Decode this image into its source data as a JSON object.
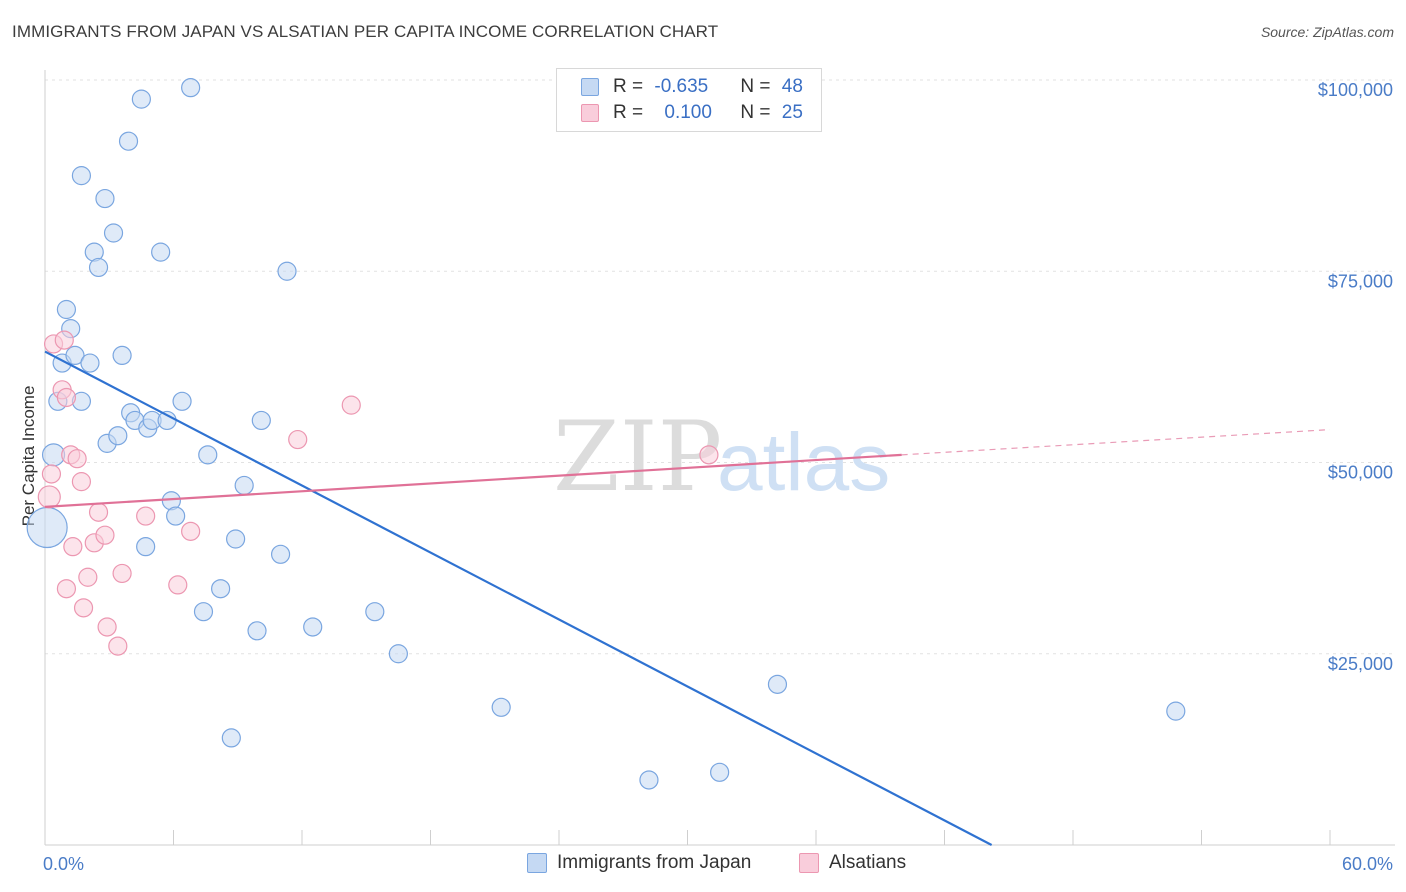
{
  "title": "IMMIGRANTS FROM JAPAN VS ALSATIAN PER CAPITA INCOME CORRELATION CHART",
  "source": "Source: ZipAtlas.com",
  "watermark": {
    "part1": "ZIP",
    "part2": "atlas"
  },
  "colors": {
    "japan_fill": "#c5d9f3",
    "japan_stroke": "#7aa6e0",
    "japan_line": "#2f72d1",
    "alsatian_fill": "#f9cddb",
    "alsatian_stroke": "#ec97b1",
    "alsatian_line": "#e07197",
    "tick": "#4a7cc7"
  },
  "legend": {
    "rows": [
      {
        "r_label": "R = ",
        "r_value": "-0.635",
        "n_label": "N = ",
        "n_value": "48"
      },
      {
        "r_label": "R = ",
        "r_value": "0.100",
        "n_label": "N = ",
        "n_value": "25"
      }
    ]
  },
  "bottom_legend": {
    "japan": "Immigrants from Japan",
    "alsatian": "Alsatians"
  },
  "chart_data": {
    "type": "scatter",
    "title": "IMMIGRANTS FROM JAPAN VS ALSATIAN PER CAPITA INCOME CORRELATION CHART",
    "xlabel": "",
    "ylabel": "Per Capita Income",
    "xlim": [
      0,
      60
    ],
    "ylim": [
      0,
      102000
    ],
    "x_tick_labels": [
      "0.0%",
      "60.0%"
    ],
    "y_ticks": [
      25000,
      50000,
      75000,
      100000
    ],
    "y_tick_labels": [
      "$25,000",
      "$50,000",
      "$75,000",
      "$100,000"
    ],
    "grid": true,
    "series": [
      {
        "name": "Immigrants from Japan",
        "r": -0.635,
        "n": 48,
        "trend": {
          "x0": 0,
          "y0": 64500,
          "x1": 44.2,
          "y1": 0
        },
        "points": [
          [
            0.1,
            41500
          ],
          [
            0.4,
            51000
          ],
          [
            0.6,
            58000
          ],
          [
            0.8,
            63000
          ],
          [
            1.0,
            70000
          ],
          [
            1.2,
            67500
          ],
          [
            1.4,
            64000
          ],
          [
            1.7,
            58000
          ],
          [
            1.7,
            87500
          ],
          [
            2.1,
            63000
          ],
          [
            2.3,
            77500
          ],
          [
            2.5,
            75500
          ],
          [
            2.8,
            84500
          ],
          [
            2.9,
            52500
          ],
          [
            3.2,
            80000
          ],
          [
            3.4,
            53500
          ],
          [
            3.6,
            64000
          ],
          [
            3.9,
            92000
          ],
          [
            4.0,
            56500
          ],
          [
            4.2,
            55500
          ],
          [
            4.5,
            97500
          ],
          [
            4.7,
            39000
          ],
          [
            4.8,
            54500
          ],
          [
            5.0,
            55500
          ],
          [
            5.4,
            77500
          ],
          [
            5.7,
            55500
          ],
          [
            5.9,
            45000
          ],
          [
            6.1,
            43000
          ],
          [
            6.4,
            58000
          ],
          [
            6.8,
            99000
          ],
          [
            7.4,
            30500
          ],
          [
            7.6,
            51000
          ],
          [
            8.2,
            33500
          ],
          [
            8.7,
            14000
          ],
          [
            8.9,
            40000
          ],
          [
            9.3,
            47000
          ],
          [
            9.9,
            28000
          ],
          [
            10.1,
            55500
          ],
          [
            11.0,
            38000
          ],
          [
            11.3,
            75000
          ],
          [
            12.5,
            28500
          ],
          [
            15.4,
            30500
          ],
          [
            16.5,
            25000
          ],
          [
            21.3,
            18000
          ],
          [
            28.2,
            8500
          ],
          [
            31.5,
            9500
          ],
          [
            34.2,
            21000
          ],
          [
            52.8,
            17500
          ]
        ]
      },
      {
        "name": "Alsatians",
        "r": 0.1,
        "n": 25,
        "trend": {
          "x0": 0,
          "y0": 44200,
          "x1": 40,
          "y1": 51000,
          "dashed_to_x": 60,
          "dashed_to_y": 54300
        },
        "points": [
          [
            0.2,
            45500
          ],
          [
            0.3,
            48500
          ],
          [
            0.4,
            65500
          ],
          [
            0.9,
            66000
          ],
          [
            0.8,
            59500
          ],
          [
            1.0,
            58500
          ],
          [
            1.0,
            33500
          ],
          [
            1.2,
            51000
          ],
          [
            1.3,
            39000
          ],
          [
            1.5,
            50500
          ],
          [
            1.7,
            47500
          ],
          [
            1.8,
            31000
          ],
          [
            2.0,
            35000
          ],
          [
            2.3,
            39500
          ],
          [
            2.5,
            43500
          ],
          [
            2.8,
            40500
          ],
          [
            2.9,
            28500
          ],
          [
            3.4,
            26000
          ],
          [
            3.6,
            35500
          ],
          [
            4.7,
            43000
          ],
          [
            6.2,
            34000
          ],
          [
            6.8,
            41000
          ],
          [
            11.8,
            53000
          ],
          [
            14.3,
            57500
          ],
          [
            31.0,
            51000
          ]
        ]
      }
    ]
  }
}
